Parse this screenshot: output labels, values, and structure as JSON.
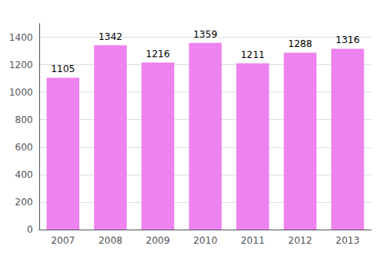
{
  "chart_data": {
    "type": "bar",
    "categories": [
      "2007",
      "2008",
      "2009",
      "2010",
      "2011",
      "2012",
      "2013"
    ],
    "values": [
      1105,
      1342,
      1216,
      1359,
      1211,
      1288,
      1316
    ],
    "color": "#EE82EE",
    "ylim": [
      0,
      1500
    ],
    "yticks": [
      0,
      200,
      400,
      600,
      800,
      1000,
      1200,
      1400
    ],
    "grid": true,
    "data_labels": true
  }
}
